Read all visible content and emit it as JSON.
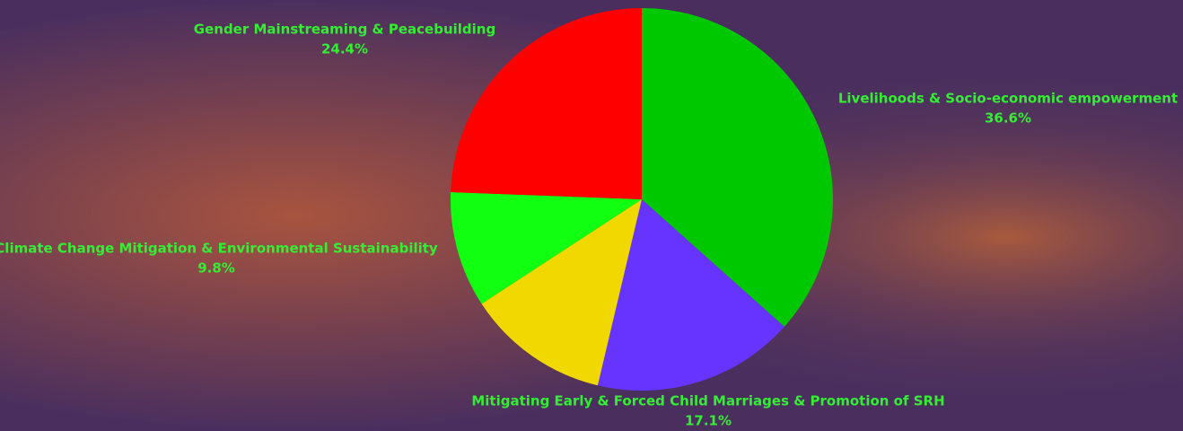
{
  "chart_data": {
    "type": "pie",
    "categories": [
      "Livelihoods & Socio-economic empowerment",
      "Mitigating Early & Forced Child Marriages & Promotion of SRH",
      null,
      "Climate Change Mitigation & Environmental Sustainability",
      "Gender Mainstreaming & Peacebuilding"
    ],
    "values": [
      36.6,
      17.1,
      12.1,
      9.8,
      24.4
    ],
    "value_labels": [
      "36.6%",
      "17.1%",
      null,
      "9.8%",
      "24.4%"
    ],
    "colors": [
      "#00c800",
      "#6633ff",
      "#f0d800",
      "#11ff11",
      "#ff0000"
    ]
  }
}
